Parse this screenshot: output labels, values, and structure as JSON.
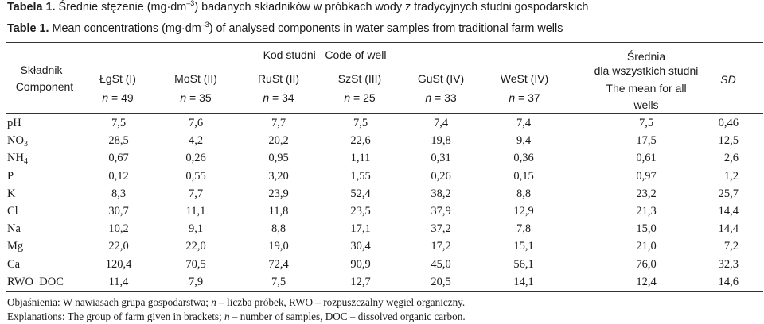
{
  "caption_pl": {
    "label": "Tabela 1.",
    "text_a": " Średnie stężenie (mg·dm",
    "sup": "–3",
    "text_b": ") badanych składników w próbkach wody z tradycyjnych studni gospodarskich"
  },
  "caption_en": {
    "label": "Table 1.",
    "text_a": " Mean concentrations (mg·dm",
    "sup": "–3",
    "text_b": ") of analysed components in water samples from traditional farm wells"
  },
  "header": {
    "component_pl": "Składnik",
    "component_en": "Component",
    "group": "Kod studni   Code of well",
    "wells": [
      {
        "code": "ŁgSt (I)",
        "n_label": "n",
        "n_value": " = 49"
      },
      {
        "code": "MoSt (II)",
        "n_label": "n",
        "n_value": " = 35"
      },
      {
        "code": "RuSt (II)",
        "n_label": "n",
        "n_value": " = 34"
      },
      {
        "code": "SzSt (III)",
        "n_label": "n",
        "n_value": " = 25"
      },
      {
        "code": "GuSt (IV)",
        "n_label": "n",
        "n_value": " = 33"
      },
      {
        "code": "WeSt (IV)",
        "n_label": "n",
        "n_value": " = 37"
      }
    ],
    "mean_pl_1": "Średnia",
    "mean_pl_2": "dla wszystkich studni",
    "mean_en_1": "The mean for all",
    "mean_en_2": "wells",
    "sd": "SD"
  },
  "rows": [
    {
      "name": "pH",
      "sub": "",
      "name2": "",
      "values": [
        "7,5",
        "7,6",
        "7,7",
        "7,5",
        "7,4",
        "7,4",
        "7,5",
        "0,46"
      ]
    },
    {
      "name": "NO",
      "sub": "3",
      "name2": "",
      "values": [
        "28,5",
        "4,2",
        "20,2",
        "22,6",
        "19,8",
        "9,4",
        "17,5",
        "12,5"
      ]
    },
    {
      "name": "NH",
      "sub": "4",
      "name2": "",
      "values": [
        "0,67",
        "0,26",
        "0,95",
        "1,11",
        "0,31",
        "0,36",
        "0,61",
        "2,6"
      ]
    },
    {
      "name": "P",
      "sub": "",
      "name2": "",
      "values": [
        "0,12",
        "0,55",
        "3,20",
        "1,55",
        "0,26",
        "0,15",
        "0,97",
        "1,2"
      ]
    },
    {
      "name": "K",
      "sub": "",
      "name2": "",
      "values": [
        "8,3",
        "7,7",
        "23,9",
        "52,4",
        "38,2",
        "8,8",
        "23,2",
        "25,7"
      ]
    },
    {
      "name": "Cl",
      "sub": "",
      "name2": "",
      "values": [
        "30,7",
        "11,1",
        "11,8",
        "23,5",
        "37,9",
        "12,9",
        "21,3",
        "14,4"
      ]
    },
    {
      "name": "Na",
      "sub": "",
      "name2": "",
      "values": [
        "10,2",
        "9,1",
        "8,8",
        "17,1",
        "37,2",
        "7,8",
        "15,0",
        "14,4"
      ]
    },
    {
      "name": "Mg",
      "sub": "",
      "name2": "",
      "values": [
        "22,0",
        "22,0",
        "19,0",
        "30,4",
        "17,2",
        "15,1",
        "21,0",
        "7,2"
      ]
    },
    {
      "name": "Ca",
      "sub": "",
      "name2": "",
      "values": [
        "120,4",
        "70,5",
        "72,4",
        "90,9",
        "45,0",
        "56,1",
        "76,0",
        "32,3"
      ]
    },
    {
      "name": "RWO  DOC",
      "sub": "",
      "name2": "",
      "values": [
        "11,4",
        "7,9",
        "7,5",
        "12,7",
        "20,5",
        "14,1",
        "12,4",
        "14,6"
      ]
    }
  ],
  "notes": {
    "pl_a": "Objaśnienia: W nawiasach grupa gospodarstwa; ",
    "pl_n": "n",
    "pl_b": " – liczba próbek, RWO – rozpuszczalny węgiel organiczny.",
    "en_a": "Explanations: The group of farm given in brackets; ",
    "en_n": "n",
    "en_b": " – number of samples, DOC – dissolved organic carbon."
  }
}
